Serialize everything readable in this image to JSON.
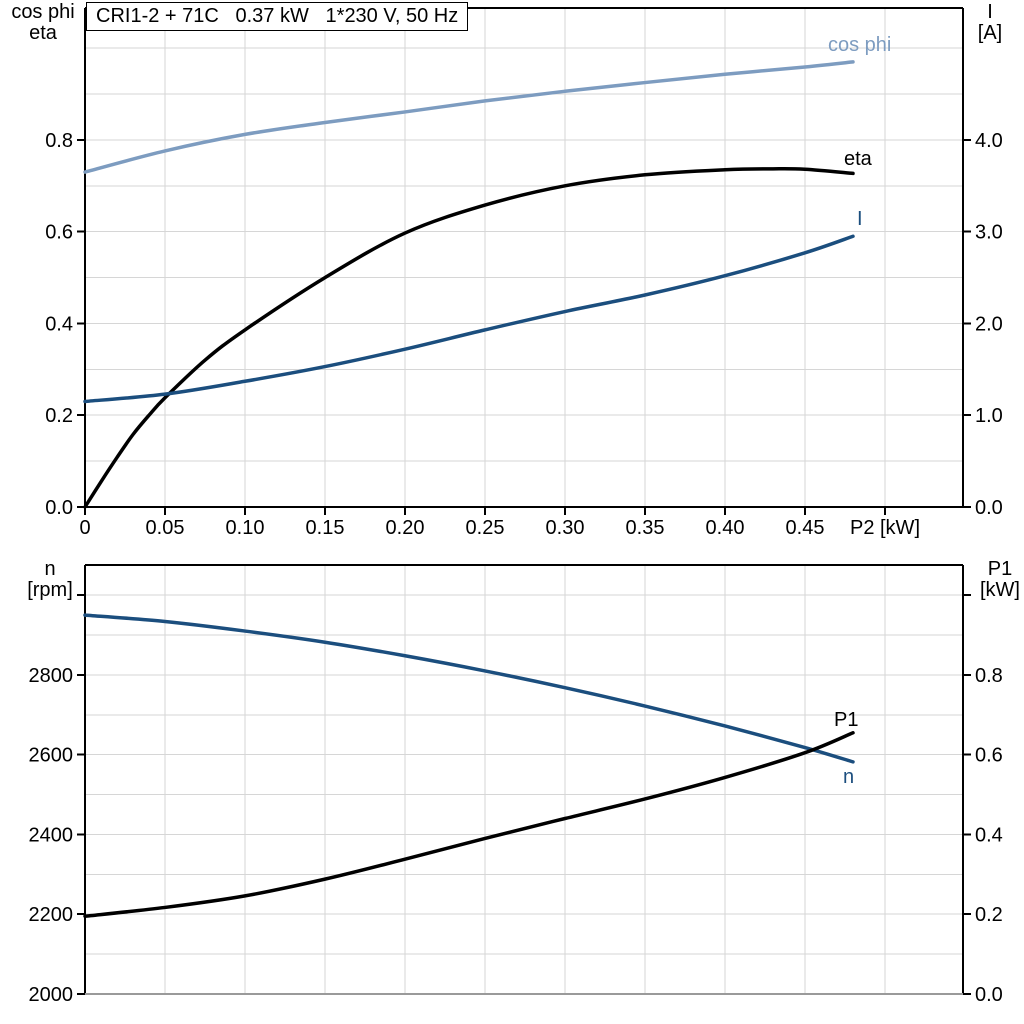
{
  "colors": {
    "light_blue": "#7d9cc0",
    "dark_blue": "#1b4e7e",
    "black": "#000000",
    "grid": "#d6d6d6",
    "axis": "#000000",
    "bottom_frame_gray": "#9a9a9a",
    "background": "#ffffff"
  },
  "chart_data": [
    {
      "type": "line",
      "panel": "top",
      "title": "CRI1-2 + 71C   0.37 kW   1*230 V, 50 Hz",
      "xlabel": "P2 [kW]",
      "ylabel_left_lines": [
        "cos phi",
        "eta"
      ],
      "ylabel_right_lines": [
        "I",
        "[A]"
      ],
      "xlim": [
        0,
        0.54875
      ],
      "ylim_left": [
        0,
        1.0875
      ],
      "ylim_right": [
        0,
        5.4375
      ],
      "grid": true,
      "legend_position": "inline-labels",
      "x_ticks": {
        "values": [
          0,
          0.05,
          0.1,
          0.15,
          0.2,
          0.25,
          0.3,
          0.35,
          0.4,
          0.45,
          0.5
        ],
        "labels": [
          "0",
          "0.05",
          "0.10",
          "0.15",
          "0.20",
          "0.25",
          "0.30",
          "0.35",
          "0.40",
          "0.45",
          ""
        ]
      },
      "y_ticks_left": {
        "values": [
          0,
          0.2,
          0.4,
          0.6,
          0.8
        ],
        "labels": [
          "0.0",
          "0.2",
          "0.4",
          "0.6",
          "0.8"
        ]
      },
      "y_ticks_right": {
        "values": [
          0,
          1,
          2,
          3,
          4
        ],
        "labels": [
          "0.0",
          "1.0",
          "2.0",
          "3.0",
          "4.0"
        ]
      },
      "x_grid": [
        0.05,
        0.1,
        0.15,
        0.2,
        0.25,
        0.3,
        0.35,
        0.4,
        0.45,
        0.5
      ],
      "y_grid": [
        0.1,
        0.2,
        0.3,
        0.4,
        0.5,
        0.6,
        0.7,
        0.8,
        0.9,
        1.0
      ],
      "frame_bottom_color": "#000000",
      "series": [
        {
          "name": "cos phi",
          "axis": "left",
          "color": "#7d9cc0",
          "x": [
            0,
            0.05,
            0.1,
            0.15,
            0.2,
            0.25,
            0.3,
            0.35,
            0.4,
            0.45,
            0.48
          ],
          "y": [
            0.73,
            0.776,
            0.812,
            0.838,
            0.861,
            0.885,
            0.906,
            0.925,
            0.943,
            0.959,
            0.97
          ]
        },
        {
          "name": "eta",
          "axis": "left",
          "color": "#000000",
          "x": [
            0,
            0.01,
            0.02,
            0.03,
            0.04,
            0.05,
            0.075,
            0.1,
            0.15,
            0.2,
            0.25,
            0.3,
            0.35,
            0.4,
            0.43,
            0.45,
            0.48
          ],
          "y": [
            0,
            0.055,
            0.108,
            0.158,
            0.2,
            0.238,
            0.32,
            0.386,
            0.5,
            0.597,
            0.658,
            0.7,
            0.724,
            0.735,
            0.737,
            0.736,
            0.727
          ]
        },
        {
          "name": "I",
          "axis": "right",
          "color": "#1b4e7e",
          "x": [
            0,
            0.05,
            0.1,
            0.15,
            0.2,
            0.25,
            0.3,
            0.35,
            0.4,
            0.45,
            0.48
          ],
          "y": [
            1.15,
            1.23,
            1.37,
            1.53,
            1.72,
            1.93,
            2.13,
            2.31,
            2.52,
            2.77,
            2.95
          ]
        }
      ]
    },
    {
      "type": "line",
      "panel": "bottom",
      "title": "",
      "xlabel": "",
      "ylabel_left_lines": [
        "n",
        "[rpm]"
      ],
      "ylabel_right_lines": [
        "P1",
        "[kW]"
      ],
      "xlim": [
        0,
        0.54875
      ],
      "ylim_left": [
        2000,
        3075.6
      ],
      "ylim_right": [
        0,
        1.0756
      ],
      "grid": true,
      "legend_position": "inline-labels",
      "x_ticks": {
        "values": [],
        "labels": []
      },
      "y_ticks_left": {
        "values": [
          2000,
          2200,
          2400,
          2600,
          2800,
          3000
        ],
        "labels": [
          "2000",
          "2200",
          "2400",
          "2600",
          "2800",
          ""
        ]
      },
      "y_ticks_right": {
        "values": [
          0,
          0.2,
          0.4,
          0.6,
          0.8,
          1.0
        ],
        "labels": [
          "0.0",
          "0.2",
          "0.4",
          "0.6",
          "0.8",
          ""
        ]
      },
      "x_grid": [
        0.05,
        0.1,
        0.15,
        0.2,
        0.25,
        0.3,
        0.35,
        0.4,
        0.45,
        0.5
      ],
      "y_grid": [
        2100,
        2200,
        2300,
        2400,
        2500,
        2600,
        2700,
        2800,
        2900,
        3000
      ],
      "frame_bottom_color": "#9a9a9a",
      "series": [
        {
          "name": "n",
          "axis": "left",
          "color": "#1b4e7e",
          "x": [
            0,
            0.05,
            0.1,
            0.15,
            0.2,
            0.25,
            0.3,
            0.35,
            0.4,
            0.45,
            0.48
          ],
          "y": [
            2950,
            2934,
            2910,
            2882,
            2848,
            2810,
            2768,
            2722,
            2672,
            2618,
            2582
          ]
        },
        {
          "name": "P1",
          "axis": "right",
          "color": "#000000",
          "x": [
            0,
            0.05,
            0.1,
            0.15,
            0.2,
            0.25,
            0.3,
            0.35,
            0.4,
            0.45,
            0.48
          ],
          "y": [
            0.195,
            0.217,
            0.246,
            0.288,
            0.338,
            0.39,
            0.44,
            0.489,
            0.543,
            0.605,
            0.655
          ]
        }
      ]
    }
  ]
}
